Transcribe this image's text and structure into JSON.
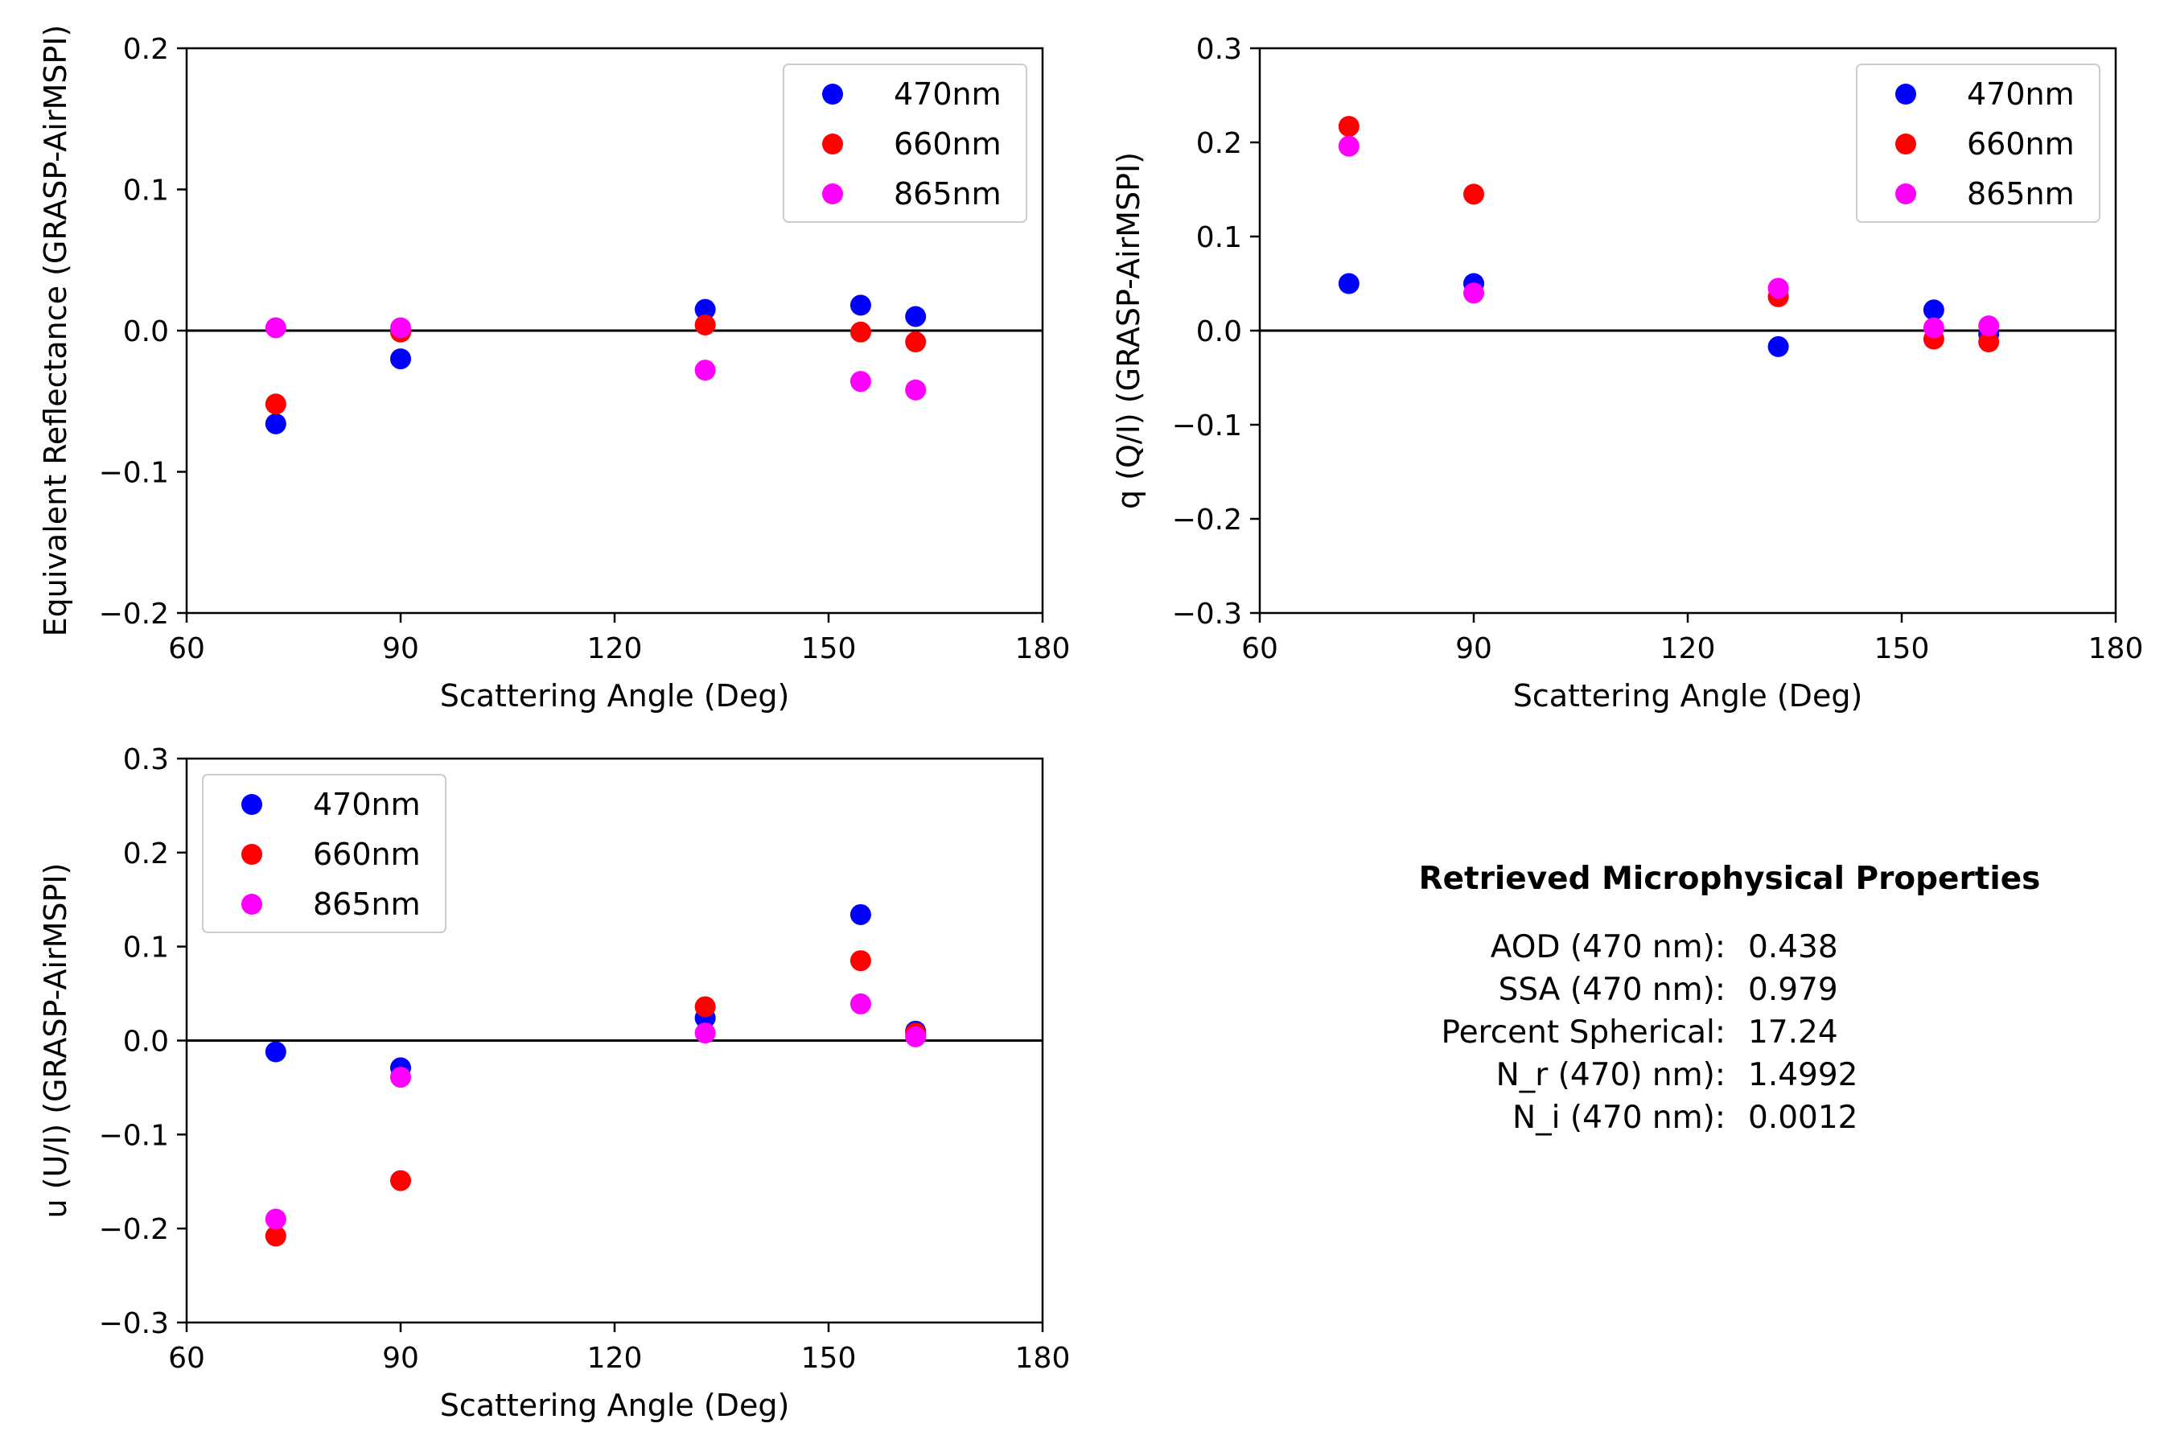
{
  "colors": {
    "470nm": "#0000ff",
    "660nm": "#ff0000",
    "865nm": "#ff00ff",
    "axis": "#000000"
  },
  "chart_data": [
    {
      "type": "scatter",
      "xlabel": "Scattering Angle (Deg)",
      "ylabel": "Equivalent Reflectance (GRASP-AirMSPI)",
      "xlim": [
        60,
        180
      ],
      "ylim": [
        -0.2,
        0.2
      ],
      "xticks": [
        60,
        90,
        120,
        150,
        180
      ],
      "yticks": [
        -0.2,
        -0.1,
        0.0,
        0.1,
        0.2
      ],
      "xtick_labels": [
        "60",
        "90",
        "120",
        "150",
        "180"
      ],
      "ytick_labels": [
        "−0.2",
        "−0.1",
        "0.0",
        "0.1",
        "0.2"
      ],
      "reference_line_y": 0,
      "legend_position": "upper right",
      "x": [
        72.5,
        90,
        132.7,
        154.5,
        162.2
      ],
      "series": [
        {
          "name": "470nm",
          "values": [
            -0.066,
            -0.02,
            0.015,
            0.018,
            0.01
          ]
        },
        {
          "name": "660nm",
          "values": [
            -0.052,
            -0.001,
            0.004,
            -0.001,
            -0.008
          ]
        },
        {
          "name": "865nm",
          "values": [
            0.002,
            0.002,
            -0.028,
            -0.036,
            -0.042
          ]
        }
      ]
    },
    {
      "type": "scatter",
      "xlabel": "Scattering Angle (Deg)",
      "ylabel": "q (Q/I) (GRASP-AirMSPI)",
      "xlim": [
        60,
        180
      ],
      "ylim": [
        -0.3,
        0.3
      ],
      "xticks": [
        60,
        90,
        120,
        150,
        180
      ],
      "yticks": [
        -0.3,
        -0.2,
        -0.1,
        0.0,
        0.1,
        0.2,
        0.3
      ],
      "xtick_labels": [
        "60",
        "90",
        "120",
        "150",
        "180"
      ],
      "ytick_labels": [
        "−0.3",
        "−0.2",
        "−0.1",
        "0.0",
        "0.1",
        "0.2",
        "0.3"
      ],
      "reference_line_y": 0,
      "legend_position": "upper right",
      "x": [
        72.5,
        90,
        132.7,
        154.5,
        162.2
      ],
      "series": [
        {
          "name": "470nm",
          "values": [
            0.05,
            0.05,
            -0.017,
            0.022,
            -0.004
          ]
        },
        {
          "name": "660nm",
          "values": [
            0.217,
            0.145,
            0.036,
            -0.009,
            -0.012
          ]
        },
        {
          "name": "865nm",
          "values": [
            0.196,
            0.04,
            0.045,
            0.003,
            0.005
          ]
        }
      ]
    },
    {
      "type": "scatter",
      "xlabel": "Scattering Angle (Deg)",
      "ylabel": "u (U/I) (GRASP-AirMSPI)",
      "xlim": [
        60,
        180
      ],
      "ylim": [
        -0.3,
        0.3
      ],
      "xticks": [
        60,
        90,
        120,
        150,
        180
      ],
      "yticks": [
        -0.3,
        -0.2,
        -0.1,
        0.0,
        0.1,
        0.2,
        0.3
      ],
      "xtick_labels": [
        "60",
        "90",
        "120",
        "150",
        "180"
      ],
      "ytick_labels": [
        "−0.3",
        "−0.2",
        "−0.1",
        "0.0",
        "0.1",
        "0.2",
        "0.3"
      ],
      "reference_line_y": 0,
      "legend_position": "upper left",
      "x": [
        72.5,
        90,
        132.7,
        154.5,
        162.2
      ],
      "series": [
        {
          "name": "470nm",
          "values": [
            -0.012,
            -0.029,
            0.024,
            0.134,
            0.01
          ]
        },
        {
          "name": "660nm",
          "values": [
            -0.208,
            -0.149,
            0.036,
            0.085,
            0.008
          ]
        },
        {
          "name": "865nm",
          "values": [
            -0.19,
            -0.039,
            0.008,
            0.039,
            0.004
          ]
        }
      ]
    }
  ],
  "properties_panel": {
    "title": "Retrieved Microphysical Properties",
    "rows": [
      {
        "label": "AOD (470 nm):",
        "value": "0.438"
      },
      {
        "label": "SSA (470 nm):",
        "value": "0.979"
      },
      {
        "label": "Percent Spherical:",
        "value": "17.24"
      },
      {
        "label": "N_r (470) nm):",
        "value": "1.4992"
      },
      {
        "label": "N_i (470 nm):",
        "value": "0.0012"
      }
    ]
  }
}
